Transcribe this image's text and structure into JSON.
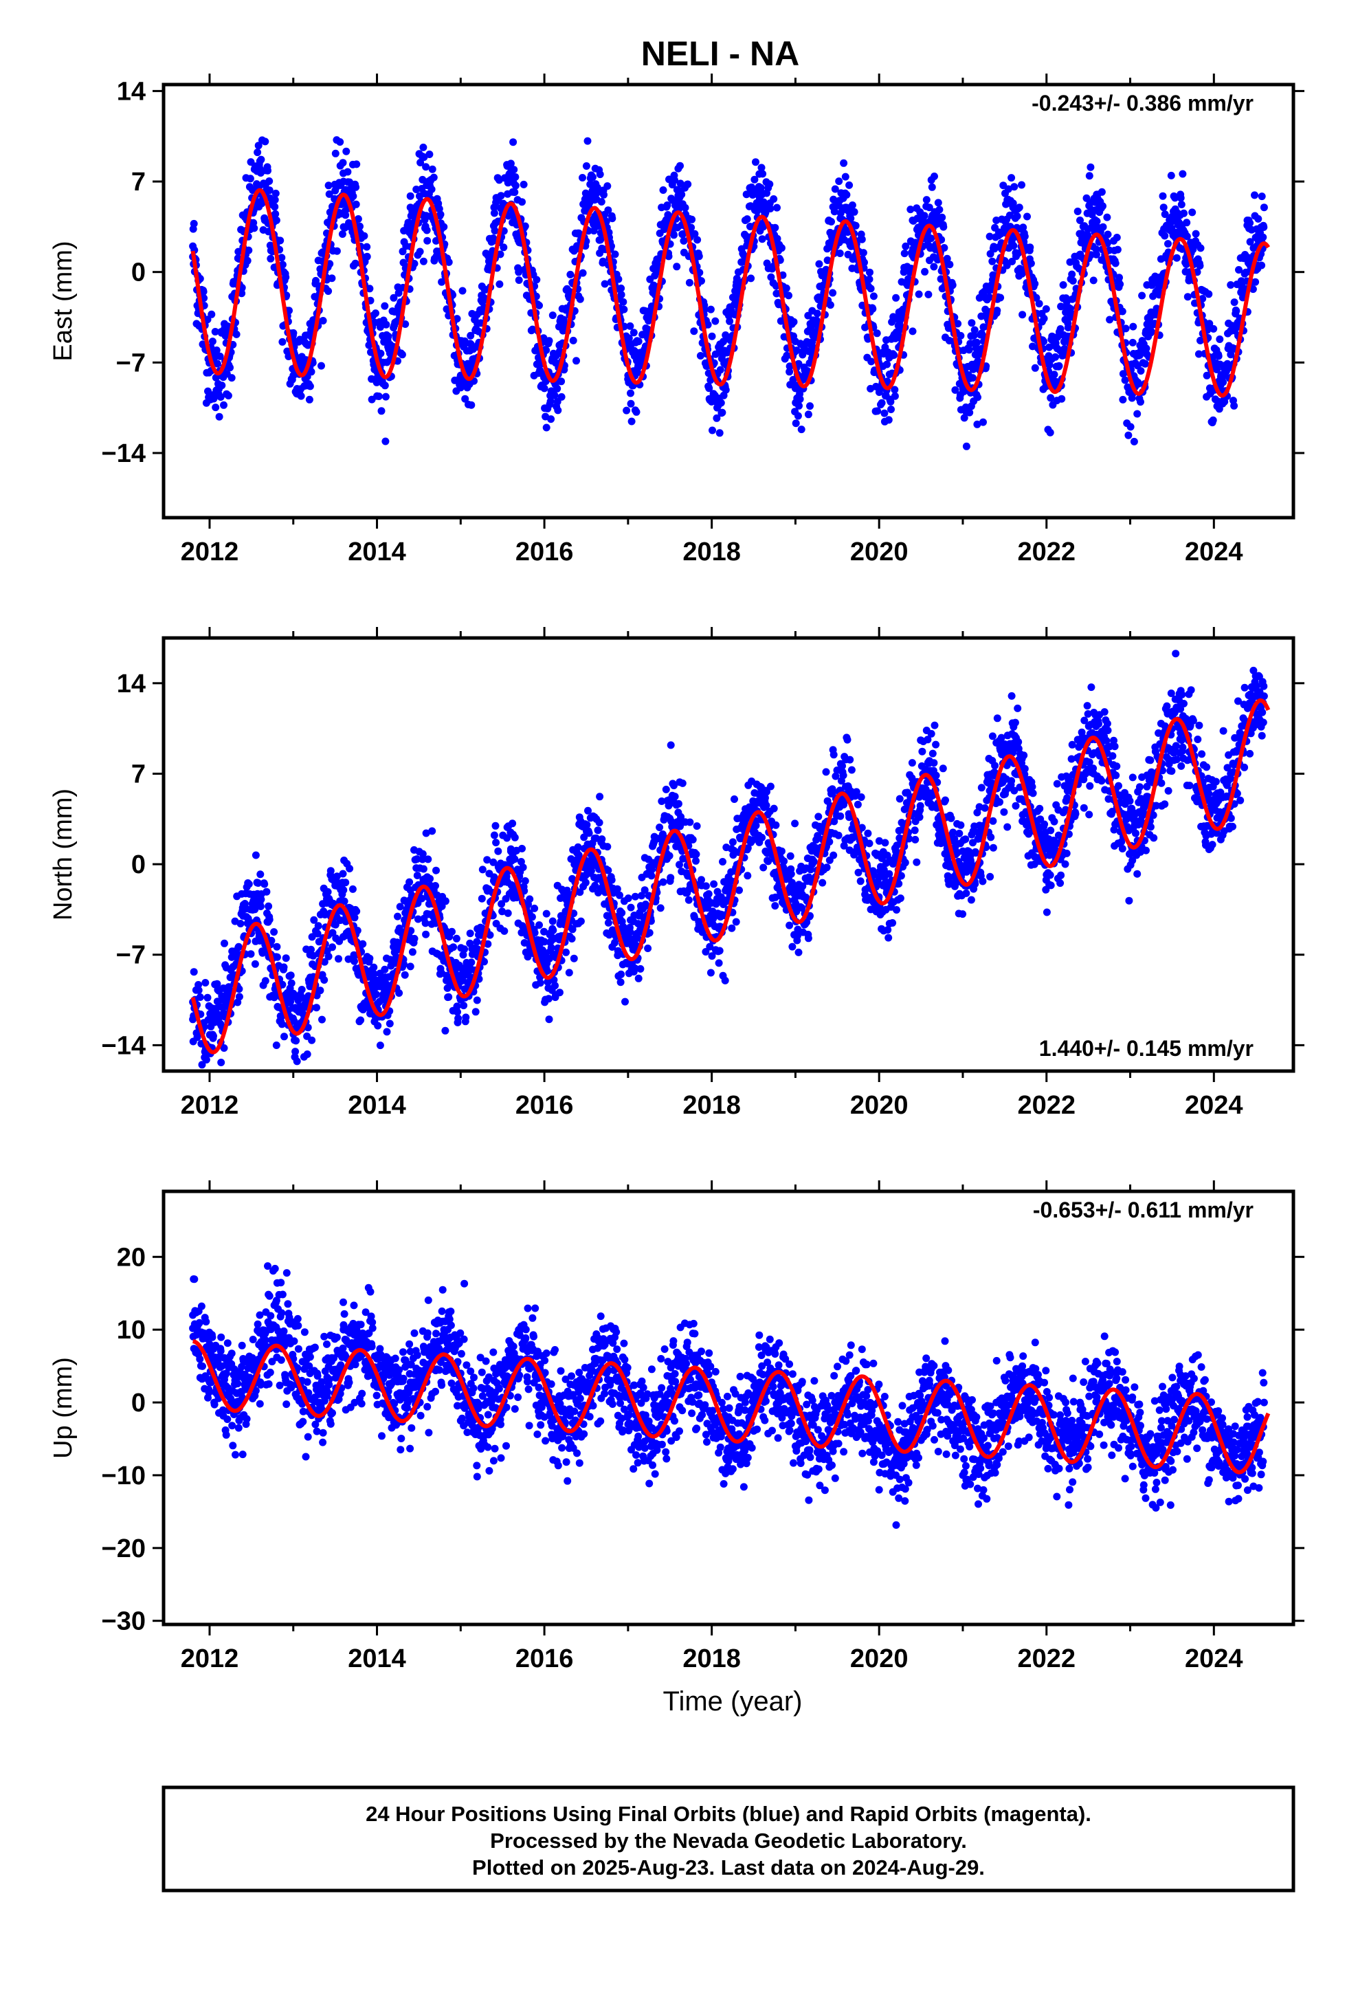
{
  "title": "NELI - NA",
  "colors": {
    "points": "#0000ff",
    "fit": "#ff0000",
    "frame": "#000000"
  },
  "chart_data": [
    {
      "type": "scatter",
      "ylabel": "East (mm)",
      "ylim": [
        -19,
        14.5
      ],
      "xlim": [
        2011.45,
        2024.95
      ],
      "yticks": [
        -14,
        -7,
        0,
        7,
        14
      ],
      "xticks": [
        2012,
        2014,
        2016,
        2018,
        2020,
        2022,
        2024
      ],
      "rate_label": "-0.243+/- 0.386 mm/yr",
      "rate_position": "top-right",
      "series": [
        {
          "type": "scatter",
          "x": [
            2011.8,
            2012.0,
            2012.2,
            2012.4,
            2012.6,
            2012.8,
            2013.0,
            2013.2,
            2013.4,
            2013.6,
            2013.8,
            2014.0,
            2014.2,
            2014.4,
            2014.6,
            2014.8,
            2015.0,
            2015.2,
            2015.4,
            2015.6,
            2015.8,
            2016.0,
            2016.2,
            2016.4,
            2016.6,
            2016.8,
            2017.0,
            2017.2,
            2017.4,
            2017.6,
            2017.8,
            2018.0,
            2018.2,
            2018.4,
            2018.6,
            2018.8,
            2019.0,
            2019.2,
            2019.4,
            2019.6,
            2019.8,
            2020.0,
            2020.2,
            2020.4,
            2020.6,
            2020.8,
            2021.0,
            2021.2,
            2021.4,
            2021.6,
            2021.8,
            2022.0,
            2022.2,
            2022.4,
            2022.6,
            2022.8,
            2023.0,
            2023.2,
            2023.4,
            2023.6,
            2023.8,
            2024.0,
            2024.2,
            2024.4,
            2024.6
          ],
          "y": [
            2,
            -7,
            -7,
            1,
            8,
            4,
            -8,
            -4,
            3,
            7,
            3,
            -7,
            -2,
            5,
            6,
            2,
            -8,
            -4,
            5,
            7,
            1,
            -9,
            -4,
            3,
            6,
            2,
            -8,
            -3,
            5,
            8,
            1,
            -8,
            -3,
            4,
            6,
            1,
            -9,
            -3,
            4,
            5,
            1,
            -9,
            -2,
            4,
            5,
            0,
            -9,
            -2,
            4,
            5,
            1,
            -8,
            -1,
            4,
            6,
            1,
            -9,
            -1,
            5,
            6,
            0,
            -9,
            -1,
            4,
            5
          ]
        },
        {
          "type": "line",
          "name": "",
          "model": {
            "t0": 2011.8,
            "t1": 2024.65,
            "offset": -0.6,
            "rate": -0.243,
            "amp": 7.2,
            "amp_trend": -0.1,
            "peak": 0.6
          }
        }
      ]
    },
    {
      "type": "scatter",
      "ylabel": "North (mm)",
      "ylim": [
        -16,
        17.5
      ],
      "xlim": [
        2011.45,
        2024.95
      ],
      "yticks": [
        -14,
        -7,
        0,
        7,
        14
      ],
      "xticks": [
        2012,
        2014,
        2016,
        2018,
        2020,
        2022,
        2024
      ],
      "rate_label": "1.440+/- 0.145 mm/yr",
      "rate_position": "bottom-right",
      "series": [
        {
          "type": "scatter",
          "x": [
            2011.8,
            2012.0,
            2012.2,
            2012.4,
            2012.6,
            2012.8,
            2013.0,
            2013.2,
            2013.4,
            2013.6,
            2013.8,
            2014.0,
            2014.2,
            2014.4,
            2014.6,
            2014.8,
            2015.0,
            2015.2,
            2015.4,
            2015.6,
            2015.8,
            2016.0,
            2016.2,
            2016.4,
            2016.6,
            2016.8,
            2017.0,
            2017.2,
            2017.4,
            2017.6,
            2017.8,
            2018.0,
            2018.2,
            2018.4,
            2018.6,
            2018.8,
            2019.0,
            2019.2,
            2019.4,
            2019.6,
            2019.8,
            2020.0,
            2020.2,
            2020.4,
            2020.6,
            2020.8,
            2021.0,
            2021.2,
            2021.4,
            2021.6,
            2021.8,
            2022.0,
            2022.2,
            2022.4,
            2022.6,
            2022.8,
            2023.0,
            2023.2,
            2023.4,
            2023.6,
            2023.8,
            2024.0,
            2024.2,
            2024.4,
            2024.6
          ],
          "y": [
            -12,
            -12,
            -8,
            -4,
            -3,
            -10,
            -10,
            -7,
            -3,
            -2,
            -8,
            -9,
            -6,
            -2,
            -1,
            -7,
            -8,
            -5,
            -1,
            1,
            -5,
            -6,
            -4,
            0,
            2,
            -4,
            -5,
            -2,
            2,
            4,
            -2,
            -3,
            -1,
            3,
            5,
            -1,
            -2,
            0,
            4,
            6,
            0,
            -1,
            1,
            5,
            8,
            2,
            1,
            3,
            7,
            9,
            3,
            2,
            4,
            8,
            11,
            5,
            4,
            6,
            10,
            12,
            6,
            5,
            7,
            11,
            13
          ]
        },
        {
          "type": "line",
          "name": "",
          "model": {
            "t0": 2011.8,
            "t1": 2024.65,
            "offset": -10.3,
            "rate": 1.44,
            "amp": 4.6,
            "amp_trend": 0.0,
            "peak": 0.55
          }
        }
      ]
    },
    {
      "type": "scatter",
      "ylabel": "Up (mm)",
      "xlabel": "Time (year)",
      "ylim": [
        -30.5,
        29
      ],
      "xlim": [
        2011.45,
        2024.95
      ],
      "yticks": [
        -30,
        -20,
        -10,
        0,
        10,
        20
      ],
      "xticks": [
        2012,
        2014,
        2016,
        2018,
        2020,
        2022,
        2024
      ],
      "rate_label": "-0.653+/- 0.611 mm/yr",
      "rate_position": "top-right",
      "series": [
        {
          "type": "scatter",
          "x": [
            2011.8,
            2012.0,
            2012.2,
            2012.4,
            2012.6,
            2012.8,
            2013.0,
            2013.2,
            2013.4,
            2013.6,
            2013.8,
            2014.0,
            2014.2,
            2014.4,
            2014.6,
            2014.8,
            2015.0,
            2015.2,
            2015.4,
            2015.6,
            2015.8,
            2016.0,
            2016.2,
            2016.4,
            2016.6,
            2016.8,
            2017.0,
            2017.2,
            2017.4,
            2017.6,
            2017.8,
            2018.0,
            2018.2,
            2018.4,
            2018.6,
            2018.8,
            2019.0,
            2019.2,
            2019.4,
            2019.6,
            2019.8,
            2020.0,
            2020.2,
            2020.4,
            2020.6,
            2020.8,
            2021.0,
            2021.2,
            2021.4,
            2021.6,
            2021.8,
            2022.0,
            2022.2,
            2022.4,
            2022.6,
            2022.8,
            2023.0,
            2023.2,
            2023.4,
            2023.6,
            2023.8,
            2024.0,
            2024.2,
            2024.4,
            2024.6
          ],
          "y": [
            12,
            8,
            4,
            6,
            12,
            14,
            6,
            4,
            8,
            10,
            9,
            6,
            4,
            7,
            9,
            10,
            4,
            0,
            3,
            8,
            7,
            -2,
            -3,
            2,
            6,
            3,
            -3,
            -4,
            2,
            5,
            2,
            -4,
            -5,
            0,
            5,
            0,
            -6,
            -5,
            -1,
            2,
            -7,
            -12,
            -10,
            -2,
            3,
            -4,
            -10,
            -8,
            0,
            3,
            -1,
            -6,
            -5,
            0,
            2,
            -2,
            -7,
            -6,
            1,
            3,
            -3,
            -8,
            -6,
            -2,
            0
          ]
        },
        {
          "type": "line",
          "name": "",
          "model": {
            "t0": 2011.8,
            "t1": 2024.65,
            "offset": 3.8,
            "rate": -0.653,
            "amp": 4.6,
            "amp_trend": 0.05,
            "peak": 0.8
          }
        }
      ]
    }
  ],
  "footer": {
    "line1": "24 Hour Positions Using Final Orbits (blue) and Rapid Orbits (magenta).",
    "line2": "Processed by the Nevada Geodetic Laboratory.",
    "line3": "Plotted on 2025-Aug-23. Last data on 2024-Aug-29."
  }
}
